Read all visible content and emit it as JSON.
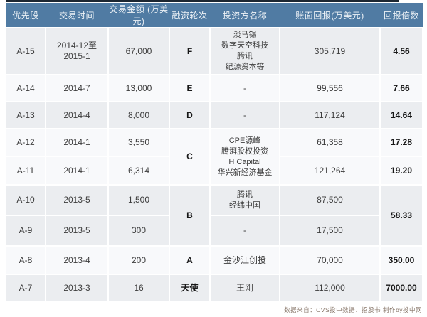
{
  "colors": {
    "header_bg": "#507ba3",
    "header_text": "#eef3f7",
    "stripe_row_bg": "#ebedf0",
    "plain_row_bg": "#f8f9fb",
    "top_line": "#1c2631",
    "body_text": "#3c3c3c",
    "footer_text": "#8a796c"
  },
  "table": {
    "columns": [
      "优先股",
      "交易时间",
      "交易金额 (万美元)",
      "融资轮次",
      "投资方名称",
      "账面回报(万美元)",
      "回报倍数"
    ],
    "rows": [
      {
        "stripe": true,
        "cells": [
          {
            "t": "A-15"
          },
          {
            "t": "2014-12至2015-1"
          },
          {
            "t": "67,000"
          },
          {
            "t": "F",
            "b": 1
          },
          {
            "lines": [
              "淡马锡",
              "数字天空科技",
              "腾讯",
              "纪源资本等"
            ]
          },
          {
            "t": "305,719"
          },
          {
            "t": "4.56",
            "b": 1
          }
        ]
      },
      {
        "stripe": false,
        "cells": [
          {
            "t": "A-14"
          },
          {
            "t": "2014-7"
          },
          {
            "t": "13,000"
          },
          {
            "t": "E",
            "b": 1
          },
          {
            "t": "-"
          },
          {
            "t": "99,556"
          },
          {
            "t": "7.66",
            "b": 1
          }
        ]
      },
      {
        "stripe": true,
        "cells": [
          {
            "t": "A-13"
          },
          {
            "t": "2014-4"
          },
          {
            "t": "8,000"
          },
          {
            "t": "D",
            "b": 1
          },
          {
            "t": "-"
          },
          {
            "t": "117,124"
          },
          {
            "t": "14.64",
            "b": 1
          }
        ]
      },
      {
        "stripe": false,
        "cells": [
          {
            "t": "A-12"
          },
          {
            "t": "2014-1"
          },
          {
            "t": "3,550"
          },
          {
            "t": "C",
            "b": 1,
            "rs": 2
          },
          {
            "lines": [
              "CPE源峰",
              "腾湃股权投资",
              "H Capital",
              "华兴新经济基金"
            ],
            "rs": 2
          },
          {
            "t": "61,358"
          },
          {
            "t": "17.28",
            "b": 1
          }
        ]
      },
      {
        "stripe": false,
        "cells": [
          {
            "t": "A-11"
          },
          {
            "t": "2014-1"
          },
          {
            "t": "6,314"
          },
          {
            "t": "121,264"
          },
          {
            "t": "19.20",
            "b": 1
          }
        ]
      },
      {
        "stripe": true,
        "cells": [
          {
            "t": "A-10"
          },
          {
            "t": "2013-5"
          },
          {
            "t": "1,500"
          },
          {
            "t": "B",
            "b": 1,
            "rs": 2
          },
          {
            "lines": [
              "腾讯",
              "经纬中国"
            ]
          },
          {
            "t": "87,500"
          },
          {
            "t": "58.33",
            "b": 1,
            "rs": 2
          }
        ]
      },
      {
        "stripe": true,
        "cells": [
          {
            "t": "A-9"
          },
          {
            "t": "2013-5"
          },
          {
            "t": "300"
          },
          {
            "t": "-"
          },
          {
            "t": "17,500"
          }
        ]
      },
      {
        "stripe": false,
        "cells": [
          {
            "t": "A-8"
          },
          {
            "t": "2013-4"
          },
          {
            "t": "200"
          },
          {
            "t": "A",
            "b": 1
          },
          {
            "t": "金沙江创投"
          },
          {
            "t": "70,000"
          },
          {
            "t": "350.00",
            "b": 1
          }
        ]
      },
      {
        "stripe": true,
        "cells": [
          {
            "t": "A-7"
          },
          {
            "t": "2013-3"
          },
          {
            "t": "16"
          },
          {
            "t": "天使",
            "b": 1
          },
          {
            "t": "王刚"
          },
          {
            "t": "112,000"
          },
          {
            "t": "7000.00",
            "b": 1
          }
        ]
      }
    ]
  },
  "footer": {
    "credit": "数据来自：CVS投中数据、招股书  制作by投中网"
  },
  "chart_data": {
    "type": "table",
    "title": "",
    "columns": [
      "优先股",
      "交易时间",
      "交易金额 (万美元)",
      "融资轮次",
      "投资方名称",
      "账面回报(万美元)",
      "回报倍数"
    ],
    "records": [
      [
        "A-15",
        "2014-12至2015-1",
        67000,
        "F",
        "淡马锡、数字天空科技、腾讯、纪源资本等",
        305719,
        4.56
      ],
      [
        "A-14",
        "2014-7",
        13000,
        "E",
        "-",
        99556,
        7.66
      ],
      [
        "A-13",
        "2014-4",
        8000,
        "D",
        "-",
        117124,
        14.64
      ],
      [
        "A-12",
        "2014-1",
        3550,
        "C",
        "CPE源峰、腾湃股权投资、H Capital、华兴新经济基金",
        61358,
        17.28
      ],
      [
        "A-11",
        "2014-1",
        6314,
        "C",
        "CPE源峰、腾湃股权投资、H Capital、华兴新经济基金",
        121264,
        19.2
      ],
      [
        "A-10",
        "2013-5",
        1500,
        "B",
        "腾讯、经纬中国",
        87500,
        58.33
      ],
      [
        "A-9",
        "2013-5",
        300,
        "B",
        "-",
        17500,
        58.33
      ],
      [
        "A-8",
        "2013-4",
        200,
        "A",
        "金沙江创投",
        70000,
        350.0
      ],
      [
        "A-7",
        "2013-3",
        16,
        "天使",
        "王刚",
        112000,
        7000.0
      ]
    ]
  }
}
